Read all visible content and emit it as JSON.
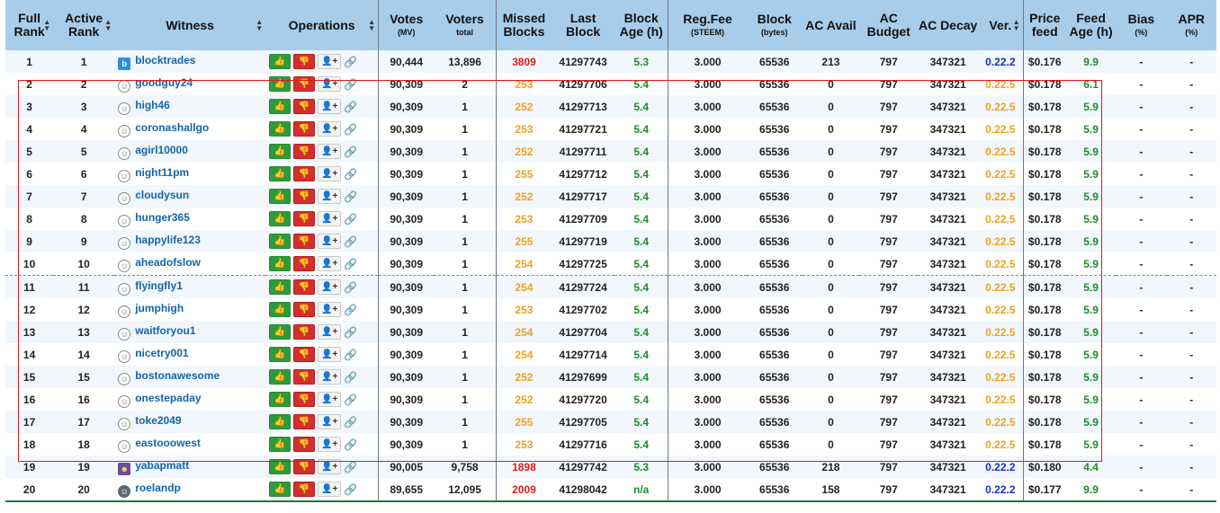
{
  "colors": {
    "header_bg": "#a8cdea",
    "link": "#1565a8",
    "missed_high": "#e21b1b",
    "missed_low": "#f0a020",
    "green": "#1d8c2a",
    "version_ok": "#1432c8",
    "version_old": "#f0a020",
    "highlight": "#e01b1b"
  },
  "headers": {
    "full_rank": "Full Rank",
    "active_rank": "Active Rank",
    "witness": "Witness",
    "operations": "Operations",
    "votes": "Votes",
    "votes_sub": "(MV)",
    "voters": "Voters",
    "voters_sub": "total",
    "missed": "Missed Blocks",
    "last_block": "Last Block",
    "block_age": "Block Age (h)",
    "reg_fee": "Reg.Fee",
    "reg_fee_sub": "(STEEM)",
    "block_size": "Block",
    "block_size_sub": "(bytes)",
    "ac_avail": "AC Avail",
    "ac_budget": "AC Budget",
    "ac_decay": "AC Decay",
    "ver": "Ver.",
    "price_feed": "Price feed",
    "feed_age": "Feed Age (h)",
    "bias": "Bias",
    "bias_sub": "(%)",
    "apr": "APR",
    "apr_sub": "(%)"
  },
  "icons": {
    "sort": "sort-arrows-icon",
    "vote_up": "thumbs-up-icon",
    "vote_down": "thumbs-down-icon",
    "proxy": "add-user-icon",
    "link": "link-icon",
    "avatar_default": "user-circle-icon"
  },
  "rows": [
    {
      "full": "1",
      "active": "1",
      "name": "blocktrades",
      "avatar": "logo",
      "votes": "90,444",
      "voters": "13,896",
      "missed": "3809",
      "missed_level": "high",
      "last": "41297743",
      "age": "5.3",
      "fee": "3.000",
      "size": "65536",
      "avail": "213",
      "budget": "797",
      "decay": "347321",
      "ver": "0.22.2",
      "ver_level": "ok",
      "price": "$0.176",
      "feed": "9.9",
      "bias": "-",
      "apr": "-"
    },
    {
      "full": "2",
      "active": "2",
      "name": "goodguy24",
      "avatar": "default",
      "votes": "90,309",
      "voters": "2",
      "missed": "253",
      "missed_level": "low",
      "last": "41297706",
      "age": "5.4",
      "fee": "3.000",
      "size": "65536",
      "avail": "0",
      "budget": "797",
      "decay": "347321",
      "ver": "0.22.5",
      "ver_level": "old",
      "price": "$0.178",
      "feed": "6.1",
      "bias": "-",
      "apr": "-"
    },
    {
      "full": "3",
      "active": "3",
      "name": "high46",
      "avatar": "default",
      "votes": "90,309",
      "voters": "1",
      "missed": "252",
      "missed_level": "low",
      "last": "41297713",
      "age": "5.4",
      "fee": "3.000",
      "size": "65536",
      "avail": "0",
      "budget": "797",
      "decay": "347321",
      "ver": "0.22.5",
      "ver_level": "old",
      "price": "$0.178",
      "feed": "5.9",
      "bias": "-",
      "apr": "-"
    },
    {
      "full": "4",
      "active": "4",
      "name": "coronashallgo",
      "avatar": "default",
      "votes": "90,309",
      "voters": "1",
      "missed": "253",
      "missed_level": "low",
      "last": "41297721",
      "age": "5.4",
      "fee": "3.000",
      "size": "65536",
      "avail": "0",
      "budget": "797",
      "decay": "347321",
      "ver": "0.22.5",
      "ver_level": "old",
      "price": "$0.178",
      "feed": "5.9",
      "bias": "-",
      "apr": "-"
    },
    {
      "full": "5",
      "active": "5",
      "name": "agirl10000",
      "avatar": "default",
      "votes": "90,309",
      "voters": "1",
      "missed": "252",
      "missed_level": "low",
      "last": "41297711",
      "age": "5.4",
      "fee": "3.000",
      "size": "65536",
      "avail": "0",
      "budget": "797",
      "decay": "347321",
      "ver": "0.22.5",
      "ver_level": "old",
      "price": "$0.178",
      "feed": "5.9",
      "bias": "-",
      "apr": "-"
    },
    {
      "full": "6",
      "active": "6",
      "name": "night11pm",
      "avatar": "default",
      "votes": "90,309",
      "voters": "1",
      "missed": "255",
      "missed_level": "low",
      "last": "41297712",
      "age": "5.4",
      "fee": "3.000",
      "size": "65536",
      "avail": "0",
      "budget": "797",
      "decay": "347321",
      "ver": "0.22.5",
      "ver_level": "old",
      "price": "$0.178",
      "feed": "5.9",
      "bias": "-",
      "apr": "-"
    },
    {
      "full": "7",
      "active": "7",
      "name": "cloudysun",
      "avatar": "default",
      "votes": "90,309",
      "voters": "1",
      "missed": "252",
      "missed_level": "low",
      "last": "41297717",
      "age": "5.4",
      "fee": "3.000",
      "size": "65536",
      "avail": "0",
      "budget": "797",
      "decay": "347321",
      "ver": "0.22.5",
      "ver_level": "old",
      "price": "$0.178",
      "feed": "5.9",
      "bias": "-",
      "apr": "-"
    },
    {
      "full": "8",
      "active": "8",
      "name": "hunger365",
      "avatar": "default",
      "votes": "90,309",
      "voters": "1",
      "missed": "253",
      "missed_level": "low",
      "last": "41297709",
      "age": "5.4",
      "fee": "3.000",
      "size": "65536",
      "avail": "0",
      "budget": "797",
      "decay": "347321",
      "ver": "0.22.5",
      "ver_level": "old",
      "price": "$0.178",
      "feed": "5.9",
      "bias": "-",
      "apr": "-"
    },
    {
      "full": "9",
      "active": "9",
      "name": "happylife123",
      "avatar": "default",
      "votes": "90,309",
      "voters": "1",
      "missed": "255",
      "missed_level": "low",
      "last": "41297719",
      "age": "5.4",
      "fee": "3.000",
      "size": "65536",
      "avail": "0",
      "budget": "797",
      "decay": "347321",
      "ver": "0.22.5",
      "ver_level": "old",
      "price": "$0.178",
      "feed": "5.9",
      "bias": "-",
      "apr": "-"
    },
    {
      "full": "10",
      "active": "10",
      "name": "aheadofslow",
      "avatar": "default",
      "votes": "90,309",
      "voters": "1",
      "missed": "254",
      "missed_level": "low",
      "last": "41297725",
      "age": "5.4",
      "fee": "3.000",
      "size": "65536",
      "avail": "0",
      "budget": "797",
      "decay": "347321",
      "ver": "0.22.5",
      "ver_level": "old",
      "price": "$0.178",
      "feed": "5.9",
      "bias": "-",
      "apr": "-"
    },
    {
      "full": "11",
      "active": "11",
      "name": "flyingfly1",
      "avatar": "default",
      "votes": "90,309",
      "voters": "1",
      "missed": "254",
      "missed_level": "low",
      "last": "41297724",
      "age": "5.4",
      "fee": "3.000",
      "size": "65536",
      "avail": "0",
      "budget": "797",
      "decay": "347321",
      "ver": "0.22.5",
      "ver_level": "old",
      "price": "$0.178",
      "feed": "5.9",
      "bias": "-",
      "apr": "-"
    },
    {
      "full": "12",
      "active": "12",
      "name": "jumphigh",
      "avatar": "default",
      "votes": "90,309",
      "voters": "1",
      "missed": "253",
      "missed_level": "low",
      "last": "41297702",
      "age": "5.4",
      "fee": "3.000",
      "size": "65536",
      "avail": "0",
      "budget": "797",
      "decay": "347321",
      "ver": "0.22.5",
      "ver_level": "old",
      "price": "$0.178",
      "feed": "5.9",
      "bias": "-",
      "apr": "-"
    },
    {
      "full": "13",
      "active": "13",
      "name": "waitforyou1",
      "avatar": "default",
      "votes": "90,309",
      "voters": "1",
      "missed": "254",
      "missed_level": "low",
      "last": "41297704",
      "age": "5.4",
      "fee": "3.000",
      "size": "65536",
      "avail": "0",
      "budget": "797",
      "decay": "347321",
      "ver": "0.22.5",
      "ver_level": "old",
      "price": "$0.178",
      "feed": "5.9",
      "bias": "-",
      "apr": "-"
    },
    {
      "full": "14",
      "active": "14",
      "name": "nicetry001",
      "avatar": "default",
      "votes": "90,309",
      "voters": "1",
      "missed": "254",
      "missed_level": "low",
      "last": "41297714",
      "age": "5.4",
      "fee": "3.000",
      "size": "65536",
      "avail": "0",
      "budget": "797",
      "decay": "347321",
      "ver": "0.22.5",
      "ver_level": "old",
      "price": "$0.178",
      "feed": "5.9",
      "bias": "-",
      "apr": "-"
    },
    {
      "full": "15",
      "active": "15",
      "name": "bostonawesome",
      "avatar": "default",
      "votes": "90,309",
      "voters": "1",
      "missed": "252",
      "missed_level": "low",
      "last": "41297699",
      "age": "5.4",
      "fee": "3.000",
      "size": "65536",
      "avail": "0",
      "budget": "797",
      "decay": "347321",
      "ver": "0.22.5",
      "ver_level": "old",
      "price": "$0.178",
      "feed": "5.9",
      "bias": "-",
      "apr": "-"
    },
    {
      "full": "16",
      "active": "16",
      "name": "onestepaday",
      "avatar": "default",
      "votes": "90,309",
      "voters": "1",
      "missed": "252",
      "missed_level": "low",
      "last": "41297720",
      "age": "5.4",
      "fee": "3.000",
      "size": "65536",
      "avail": "0",
      "budget": "797",
      "decay": "347321",
      "ver": "0.22.5",
      "ver_level": "old",
      "price": "$0.178",
      "feed": "5.9",
      "bias": "-",
      "apr": "-"
    },
    {
      "full": "17",
      "active": "17",
      "name": "toke2049",
      "avatar": "default",
      "votes": "90,309",
      "voters": "1",
      "missed": "255",
      "missed_level": "low",
      "last": "41297705",
      "age": "5.4",
      "fee": "3.000",
      "size": "65536",
      "avail": "0",
      "budget": "797",
      "decay": "347321",
      "ver": "0.22.5",
      "ver_level": "old",
      "price": "$0.178",
      "feed": "5.9",
      "bias": "-",
      "apr": "-"
    },
    {
      "full": "18",
      "active": "18",
      "name": "eastooowest",
      "avatar": "default",
      "votes": "90,309",
      "voters": "1",
      "missed": "253",
      "missed_level": "low",
      "last": "41297716",
      "age": "5.4",
      "fee": "3.000",
      "size": "65536",
      "avail": "0",
      "budget": "797",
      "decay": "347321",
      "ver": "0.22.5",
      "ver_level": "old",
      "price": "$0.178",
      "feed": "5.9",
      "bias": "-",
      "apr": "-"
    },
    {
      "full": "19",
      "active": "19",
      "name": "yabapmatt",
      "avatar": "pic",
      "votes": "90,005",
      "voters": "9,758",
      "missed": "1898",
      "missed_level": "high",
      "last": "41297742",
      "age": "5.3",
      "fee": "3.000",
      "size": "65536",
      "avail": "218",
      "budget": "797",
      "decay": "347321",
      "ver": "0.22.2",
      "ver_level": "ok",
      "price": "$0.180",
      "feed": "4.4",
      "bias": "-",
      "apr": "-"
    },
    {
      "full": "20",
      "active": "20",
      "name": "roelandp",
      "avatar": "pic2",
      "votes": "89,655",
      "voters": "12,095",
      "missed": "2009",
      "missed_level": "high",
      "last": "41298042",
      "age": "n/a",
      "fee": "3.000",
      "size": "65536",
      "avail": "158",
      "budget": "797",
      "decay": "347321",
      "ver": "0.22.2",
      "ver_level": "ok",
      "price": "$0.177",
      "feed": "9.9",
      "bias": "-",
      "apr": "-"
    }
  ]
}
